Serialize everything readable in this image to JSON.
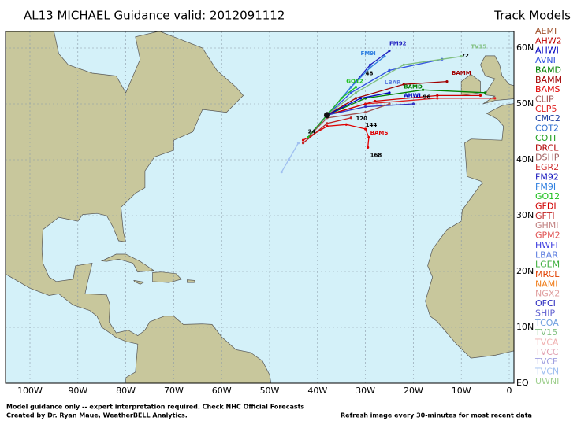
{
  "header": {
    "title": "AL13 MICHAEL Guidance valid: 2012091112",
    "legend_title": "Track Models"
  },
  "legend": [
    {
      "name": "AEMI",
      "color": "#a0522d"
    },
    {
      "name": "AHW2",
      "color": "#c00000"
    },
    {
      "name": "AHWI",
      "color": "#0000c0"
    },
    {
      "name": "AVNI",
      "color": "#3050e0"
    },
    {
      "name": "BAMD",
      "color": "#008000"
    },
    {
      "name": "BAMM",
      "color": "#a00000"
    },
    {
      "name": "BAMS",
      "color": "#e00000"
    },
    {
      "name": "CLIP",
      "color": "#a05050"
    },
    {
      "name": "CLP5",
      "color": "#e02020"
    },
    {
      "name": "CMC2",
      "color": "#2040a0"
    },
    {
      "name": "COT2",
      "color": "#3070d0"
    },
    {
      "name": "COTI",
      "color": "#20a020"
    },
    {
      "name": "DRCL",
      "color": "#b00000"
    },
    {
      "name": "DSHP",
      "color": "#a06060"
    },
    {
      "name": "EGR2",
      "color": "#d03030"
    },
    {
      "name": "FM92",
      "color": "#2020c0"
    },
    {
      "name": "FM9I",
      "color": "#3080e0"
    },
    {
      "name": "GO12",
      "color": "#20c020"
    },
    {
      "name": "GFDI",
      "color": "#d00000"
    },
    {
      "name": "GFTI",
      "color": "#c02020"
    },
    {
      "name": "GHMI",
      "color": "#c08080"
    },
    {
      "name": "GPM2",
      "color": "#e05050"
    },
    {
      "name": "HWFI",
      "color": "#4040e0"
    },
    {
      "name": "LBAR",
      "color": "#6080e0"
    },
    {
      "name": "LGEM",
      "color": "#40b040"
    },
    {
      "name": "MRCL",
      "color": "#e04000"
    },
    {
      "name": "NAMI",
      "color": "#f08020"
    },
    {
      "name": "NGX2",
      "color": "#e0a0a0"
    },
    {
      "name": "OFCI",
      "color": "#3030c0"
    },
    {
      "name": "SHIP",
      "color": "#6060d0"
    },
    {
      "name": "TCOA",
      "color": "#70a0e0"
    },
    {
      "name": "TV15",
      "color": "#80c080"
    },
    {
      "name": "TVCA",
      "color": "#f0b0b0"
    },
    {
      "name": "TVCC",
      "color": "#e0a0b0"
    },
    {
      "name": "TVCE",
      "color": "#a0a0e0"
    },
    {
      "name": "TVCN",
      "color": "#a0c0f0"
    },
    {
      "name": "UWNI",
      "color": "#a0d090"
    }
  ],
  "longitude_labels": [
    "100W",
    "90W",
    "80W",
    "70W",
    "60W",
    "50W",
    "40W",
    "30W",
    "20W",
    "10W",
    "0"
  ],
  "latitude_labels": [
    "60N",
    "50N",
    "40N",
    "30N",
    "20N",
    "10N",
    "EQ"
  ],
  "track_labels": [
    "FM92",
    "FM9I",
    "BAMM",
    "BAMS",
    "BAMD",
    "GO12",
    "AHWI",
    "LBAR",
    "TV15",
    "168",
    "144",
    "120",
    "96",
    "72",
    "48",
    "24"
  ],
  "footer": {
    "note": "Model guidance only -- expert interpretation required.  Check NHC Official Forecasts",
    "credit": "Created by Dr. Ryan Maue, WeatherBELL Analytics.",
    "refresh": "Refresh image every 30-minutes for most recent data"
  }
}
